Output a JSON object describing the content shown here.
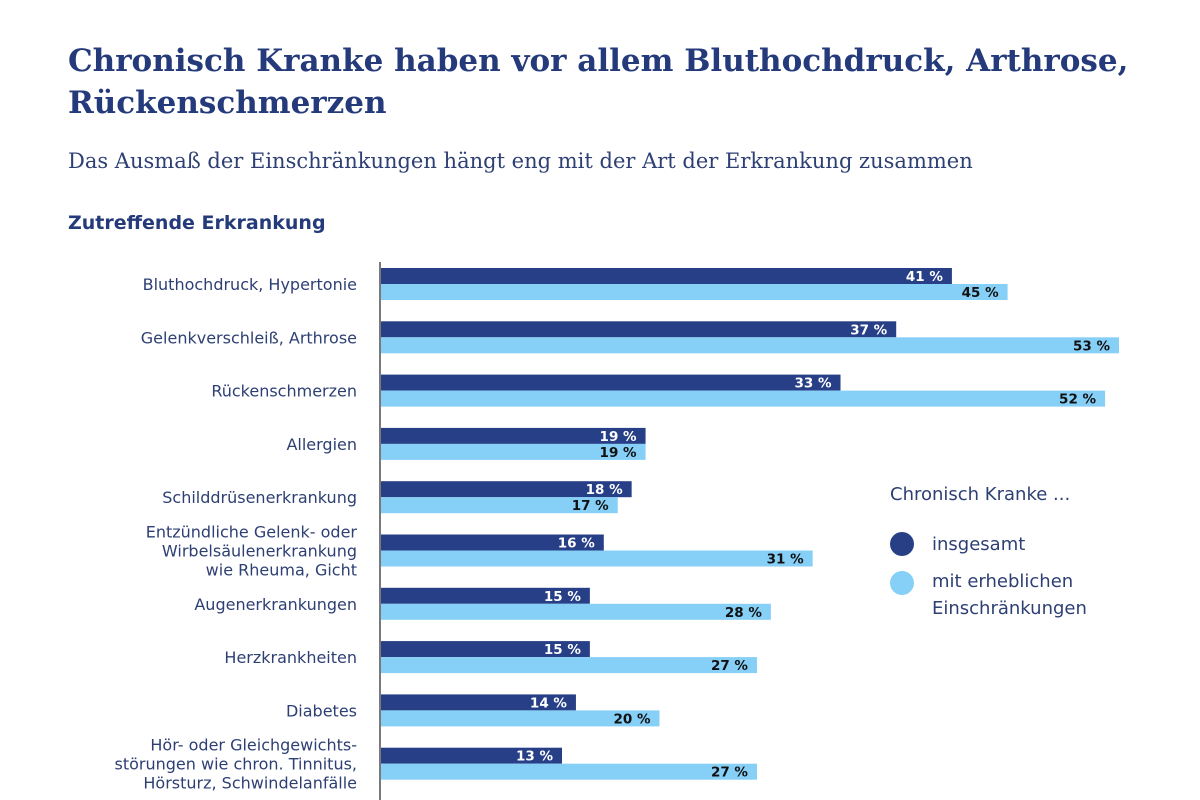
{
  "header": {
    "title": "Chronisch Kranke haben vor allem Bluthochdruck, Arthrose, Rückenschmerzen",
    "subtitle": "Das Ausmaß der Einschränkungen hängt eng mit der Art der Erkrankung zusammen",
    "category_axis_label": "Zutreffende Erkrankung"
  },
  "legend": {
    "title": "Chronisch Kranke ...",
    "items": [
      {
        "label": "insgesamt",
        "color": "#263f86"
      },
      {
        "label": "mit erheblichen Einschränkungen",
        "color": "#86cff7"
      }
    ]
  },
  "chart_data": {
    "type": "bar",
    "orientation": "horizontal",
    "categories": [
      [
        "Bluthochdruck, Hypertonie"
      ],
      [
        "Gelenkverschleiß, Arthrose"
      ],
      [
        "Rückenschmerzen"
      ],
      [
        "Allergien"
      ],
      [
        "Schilddrüsenerkrankung"
      ],
      [
        "Entzündliche Gelenk- oder",
        "Wirbelsäulenerkrankung",
        "wie Rheuma, Gicht"
      ],
      [
        "Augenerkrankungen"
      ],
      [
        "Herzkrankheiten"
      ],
      [
        "Diabetes"
      ],
      [
        "Hör- oder Gleichgewichts-",
        "störungen wie chron. Tinnitus,",
        "Hörsturz, Schwindelanfälle"
      ]
    ],
    "series": [
      {
        "name": "insgesamt",
        "color": "#263f86",
        "values": [
          41,
          37,
          33,
          19,
          18,
          16,
          15,
          15,
          14,
          13
        ]
      },
      {
        "name": "mit erheblichen Einschränkungen",
        "color": "#86cff7",
        "values": [
          45,
          53,
          52,
          19,
          17,
          31,
          28,
          27,
          20,
          27
        ]
      }
    ],
    "value_suffix": " %",
    "xlim": [
      0,
      53
    ],
    "grid": false,
    "legend_position": "right"
  }
}
